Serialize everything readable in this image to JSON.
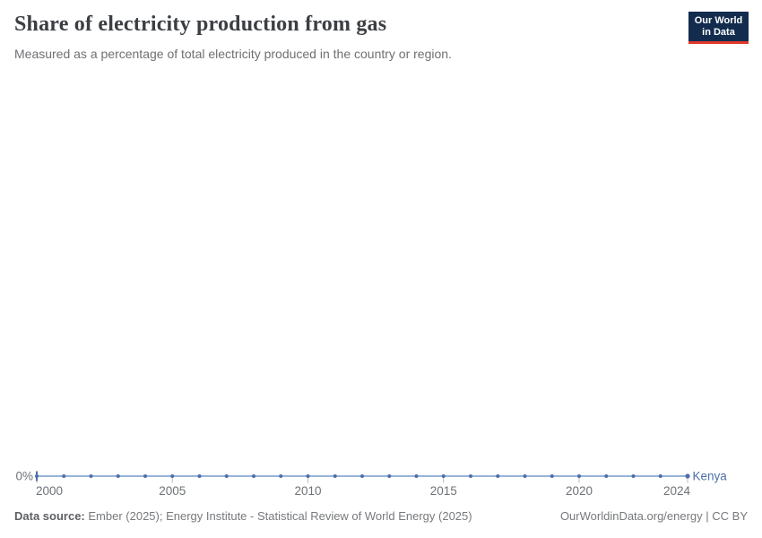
{
  "header": {
    "logo": {
      "line1": "Our World",
      "line2": "in Data",
      "bg_color": "#132c4e",
      "accent_color": "#e2392d"
    }
  },
  "chart_data": {
    "type": "line",
    "title": "Share of electricity production from gas",
    "subtitle": "Measured as a percentage of total electricity produced in the country or region.",
    "x": [
      2000,
      2001,
      2002,
      2003,
      2004,
      2005,
      2006,
      2007,
      2008,
      2009,
      2010,
      2011,
      2012,
      2013,
      2014,
      2015,
      2016,
      2017,
      2018,
      2019,
      2020,
      2021,
      2022,
      2023,
      2024
    ],
    "series": [
      {
        "name": "Kenya",
        "color": "#4c6fa8",
        "line_color": "#8aa8d2",
        "values": [
          0,
          0,
          0,
          0,
          0,
          0,
          0,
          0,
          0,
          0,
          0,
          0,
          0,
          0,
          0,
          0,
          0,
          0,
          0,
          0,
          0,
          0,
          0,
          0,
          0
        ]
      }
    ],
    "x_ticks": [
      2000,
      2005,
      2010,
      2015,
      2020,
      2024
    ],
    "xlim": [
      2000,
      2024
    ],
    "ylim": [
      0,
      0
    ],
    "y_tick_labels": [
      "0%"
    ],
    "grid": false,
    "legend_position": "line-end"
  },
  "footer": {
    "source_label": "Data source:",
    "source_text": "Ember (2025); Energy Institute - Statistical Review of World Energy (2025)",
    "credit": "OurWorldinData.org/energy | CC BY"
  }
}
